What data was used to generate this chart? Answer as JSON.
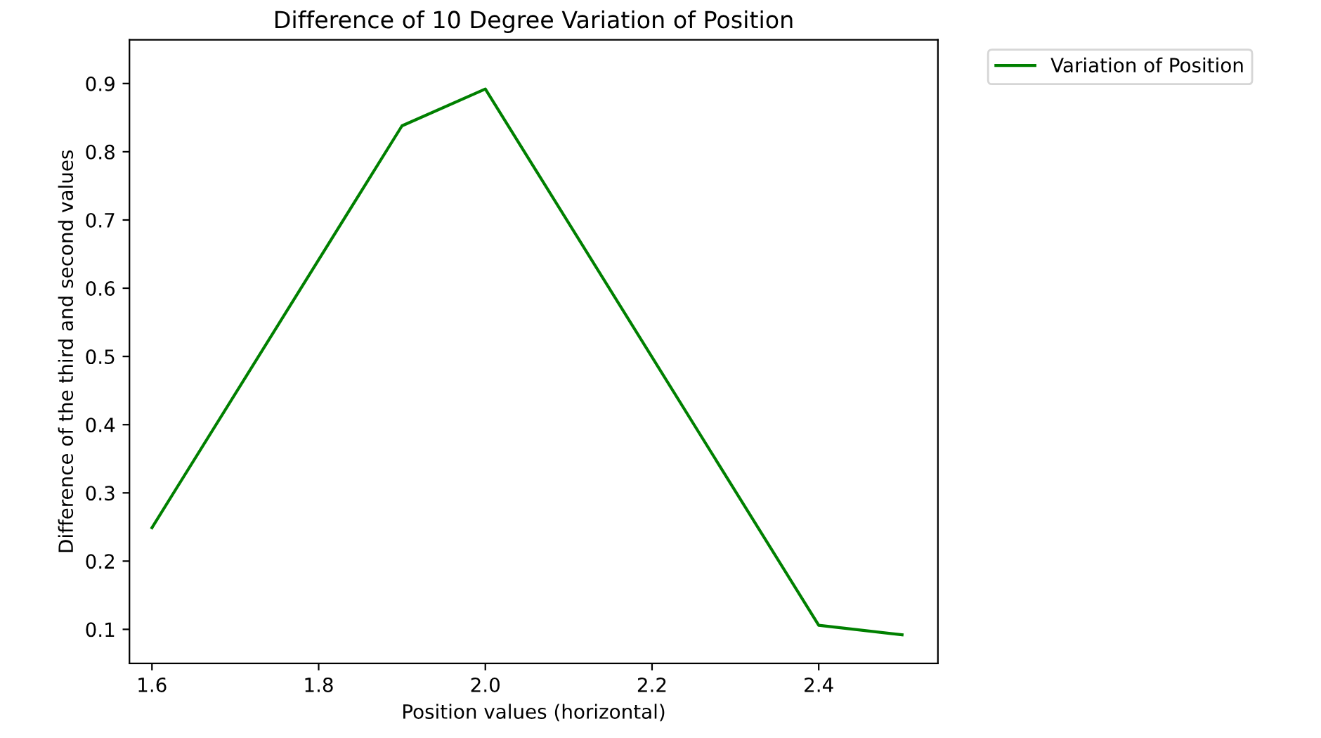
{
  "chart_data": {
    "type": "line",
    "title": "Difference of 10 Degree Variation of Position",
    "xlabel": "Position values (horizontal)",
    "ylabel": "Difference of the third and second values",
    "x": [
      1.6,
      1.9,
      2.0,
      2.4,
      2.5
    ],
    "series": [
      {
        "name": "Variation of Position",
        "color": "#008000",
        "values": [
          0.249,
          0.838,
          0.892,
          0.106,
          0.092
        ]
      }
    ],
    "xlim": [
      1.573,
      2.543
    ],
    "ylim": [
      0.05,
      0.964
    ],
    "xticks": [
      {
        "value": 1.6,
        "label": "1.6"
      },
      {
        "value": 1.8,
        "label": "1.8"
      },
      {
        "value": 2.0,
        "label": "2.0"
      },
      {
        "value": 2.2,
        "label": "2.2"
      },
      {
        "value": 2.4,
        "label": "2.4"
      }
    ],
    "yticks": [
      0.1,
      0.2,
      0.3,
      0.4,
      0.5,
      0.6,
      0.7,
      0.8,
      0.9
    ],
    "grid": false,
    "legend": "top right",
    "marker": "none",
    "line_style": "solid"
  }
}
